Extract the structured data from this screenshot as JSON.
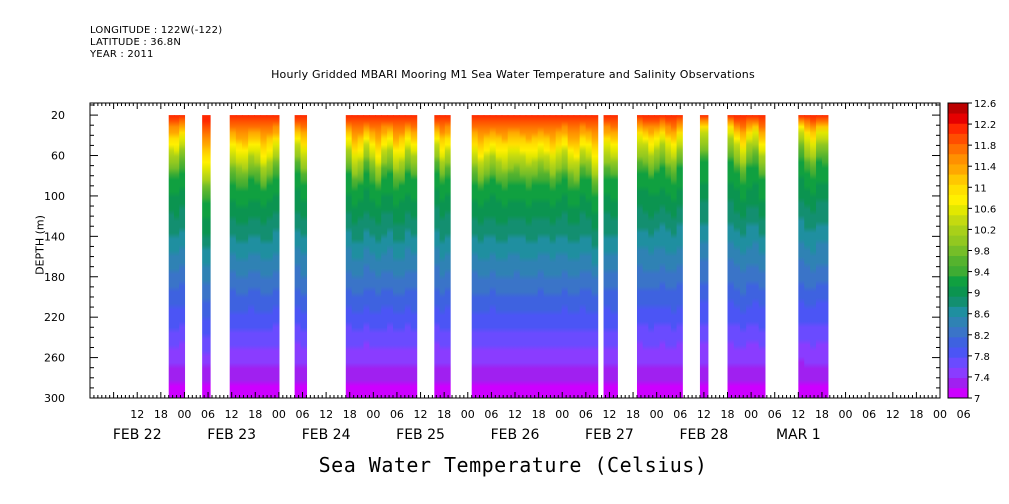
{
  "header": {
    "longitude": "LONGITUDE : 122W(-122)",
    "latitude": "LATITUDE : 36.8N",
    "year": "YEAR : 2011"
  },
  "chart_data": {
    "type": "heatmap",
    "title": "Hourly Gridded MBARI Mooring M1 Sea Water Temperature and Salinity Observations",
    "xlabel": "",
    "ylabel": "DEPTH (m)",
    "caption": "Sea Water Temperature (Celsius)",
    "x_range_hours": [
      0,
      216
    ],
    "x_start_label": "FEB 22 00",
    "y_range": [
      10,
      300
    ],
    "y_ticks": [
      20,
      60,
      100,
      140,
      180,
      220,
      260,
      300
    ],
    "y_inverted": true,
    "hour_tick_labels": [
      "12",
      "18",
      "00",
      "06",
      "12",
      "18",
      "00",
      "06",
      "12",
      "18",
      "00",
      "06",
      "12",
      "18",
      "00",
      "06",
      "12",
      "18",
      "00",
      "06",
      "12",
      "18",
      "00",
      "06",
      "12",
      "18",
      "00",
      "06",
      "12",
      "18",
      "00",
      "06",
      "12",
      "18",
      "00",
      "06"
    ],
    "hour_tick_positions": [
      12,
      18,
      24,
      30,
      36,
      42,
      48,
      54,
      60,
      66,
      72,
      78,
      84,
      90,
      96,
      102,
      108,
      114,
      120,
      126,
      132,
      138,
      144,
      150,
      156,
      162,
      168,
      174,
      180,
      186,
      192,
      198,
      204,
      210,
      216,
      222
    ],
    "day_labels": [
      {
        "label": "FEB 22",
        "hour": 12
      },
      {
        "label": "FEB 23",
        "hour": 36
      },
      {
        "label": "FEB 24",
        "hour": 60
      },
      {
        "label": "FEB 25",
        "hour": 84
      },
      {
        "label": "FEB 26",
        "hour": 108
      },
      {
        "label": "FEB 27",
        "hour": 132
      },
      {
        "label": "FEB 28",
        "hour": 156
      },
      {
        "label": "MAR  1",
        "hour": 180
      }
    ],
    "data_segments": [
      {
        "start": 20.0,
        "end": 24.0,
        "mixed_layer": 48
      },
      {
        "start": 28.5,
        "end": 30.5,
        "mixed_layer": 72
      },
      {
        "start": 35.5,
        "end": 48.0,
        "mixed_layer": 58
      },
      {
        "start": 52.0,
        "end": 55.0,
        "mixed_layer": 52
      },
      {
        "start": 65.0,
        "end": 83.0,
        "mixed_layer": 55
      },
      {
        "start": 87.5,
        "end": 91.5,
        "mixed_layer": 50
      },
      {
        "start": 97.0,
        "end": 129.0,
        "mixed_layer": 58
      },
      {
        "start": 130.5,
        "end": 134.0,
        "mixed_layer": 52
      },
      {
        "start": 139.0,
        "end": 150.5,
        "mixed_layer": 48
      },
      {
        "start": 155.0,
        "end": 157.0,
        "mixed_layer": 42
      },
      {
        "start": 162.0,
        "end": 171.5,
        "mixed_layer": 46
      },
      {
        "start": 180.0,
        "end": 187.5,
        "mixed_layer": 42
      }
    ],
    "colorbar": {
      "labels": [
        "12.6",
        "12.2",
        "11.8",
        "11.4",
        "11",
        "10.6",
        "10.2",
        "9.8",
        "9.4",
        "9",
        "8.6",
        "8.2",
        "7.8",
        "7.4",
        "7"
      ],
      "levels": [
        7,
        7.2,
        7.4,
        7.6,
        7.8,
        8,
        8.2,
        8.4,
        8.6,
        8.8,
        9,
        9.2,
        9.4,
        9.6,
        9.8,
        10,
        10.2,
        10.4,
        10.6,
        10.8,
        11,
        11.2,
        11.4,
        11.6,
        11.8,
        12,
        12.2,
        12.4,
        12.6
      ],
      "colors": [
        "#cc00ff",
        "#a020f0",
        "#8a3cff",
        "#6a4bff",
        "#4b55f5",
        "#3e62e0",
        "#3a74c8",
        "#2f82b4",
        "#1f8fa0",
        "#138f70",
        "#0b9450",
        "#10a040",
        "#3eac33",
        "#55b32e",
        "#75be28",
        "#92c820",
        "#a8d019",
        "#c4da10",
        "#e2e800",
        "#fff000",
        "#ffe000",
        "#ffc800",
        "#ffa800",
        "#ff9000",
        "#ff7000",
        "#ff4e00",
        "#ff2800",
        "#e60000",
        "#bb0000"
      ]
    }
  }
}
